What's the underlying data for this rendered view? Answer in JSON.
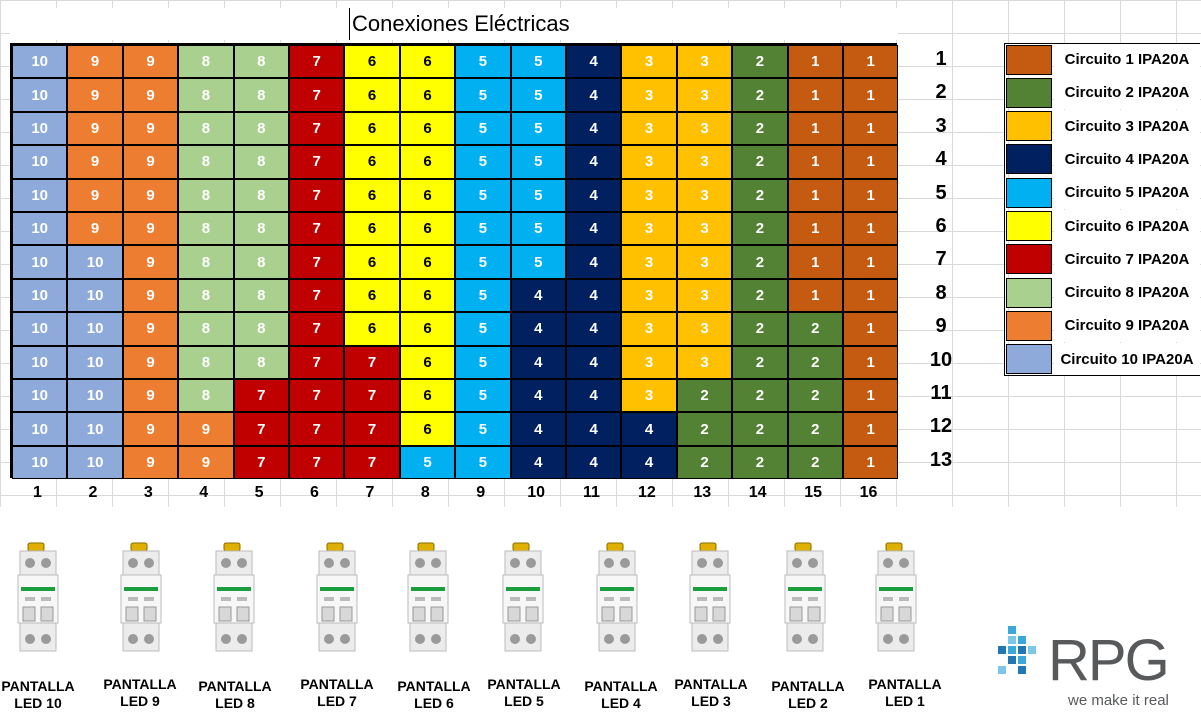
{
  "title": "Conexiones Eléctricas",
  "colors": {
    "1": "#c55a11",
    "2": "#548235",
    "3": "#ffc000",
    "4": "#002060",
    "5": "#00b0f0",
    "6": "#ffff00",
    "7": "#c00000",
    "8": "#a9d08e",
    "9": "#ed7d31",
    "10": "#8eaadb"
  },
  "text_colors": {
    "1": "#ffffff",
    "2": "#ffffff",
    "3": "#ffffff",
    "4": "#ffffff",
    "5": "#ffffff",
    "6": "#000000",
    "7": "#ffffff",
    "8": "#ffffff",
    "9": "#ffffff",
    "10": "#ffffff"
  },
  "grid_rows": [
    [
      10,
      9,
      9,
      8,
      8,
      7,
      6,
      6,
      5,
      5,
      4,
      3,
      3,
      2,
      1,
      1
    ],
    [
      10,
      9,
      9,
      8,
      8,
      7,
      6,
      6,
      5,
      5,
      4,
      3,
      3,
      2,
      1,
      1
    ],
    [
      10,
      9,
      9,
      8,
      8,
      7,
      6,
      6,
      5,
      5,
      4,
      3,
      3,
      2,
      1,
      1
    ],
    [
      10,
      9,
      9,
      8,
      8,
      7,
      6,
      6,
      5,
      5,
      4,
      3,
      3,
      2,
      1,
      1
    ],
    [
      10,
      9,
      9,
      8,
      8,
      7,
      6,
      6,
      5,
      5,
      4,
      3,
      3,
      2,
      1,
      1
    ],
    [
      10,
      9,
      9,
      8,
      8,
      7,
      6,
      6,
      5,
      5,
      4,
      3,
      3,
      2,
      1,
      1
    ],
    [
      10,
      10,
      9,
      8,
      8,
      7,
      6,
      6,
      5,
      5,
      4,
      3,
      3,
      2,
      1,
      1
    ],
    [
      10,
      10,
      9,
      8,
      8,
      7,
      6,
      6,
      5,
      4,
      4,
      3,
      3,
      2,
      1,
      1
    ],
    [
      10,
      10,
      9,
      8,
      8,
      7,
      6,
      6,
      5,
      4,
      4,
      3,
      3,
      2,
      2,
      1
    ],
    [
      10,
      10,
      9,
      8,
      8,
      7,
      7,
      6,
      5,
      4,
      4,
      3,
      3,
      2,
      2,
      1
    ],
    [
      10,
      10,
      9,
      8,
      7,
      7,
      7,
      6,
      5,
      4,
      4,
      3,
      2,
      2,
      2,
      1
    ],
    [
      10,
      10,
      9,
      9,
      7,
      7,
      7,
      6,
      5,
      4,
      4,
      4,
      2,
      2,
      2,
      1
    ],
    [
      10,
      10,
      9,
      9,
      7,
      7,
      7,
      5,
      5,
      4,
      4,
      4,
      2,
      2,
      2,
      1
    ]
  ],
  "column_labels": [
    "1",
    "2",
    "3",
    "4",
    "5",
    "6",
    "7",
    "8",
    "9",
    "10",
    "11",
    "12",
    "13",
    "14",
    "15",
    "16"
  ],
  "row_labels": [
    "1",
    "2",
    "3",
    "4",
    "5",
    "6",
    "7",
    "8",
    "9",
    "10",
    "11",
    "12",
    "13"
  ],
  "legend": [
    {
      "circuit": "1",
      "label": "Circuito 1 IPA20A"
    },
    {
      "circuit": "2",
      "label": "Circuito 2 IPA20A"
    },
    {
      "circuit": "3",
      "label": "Circuito 3 IPA20A"
    },
    {
      "circuit": "4",
      "label": "Circuito 4 IPA20A"
    },
    {
      "circuit": "5",
      "label": "Circuito 5 IPA20A"
    },
    {
      "circuit": "6",
      "label": "Circuito 6 IPA20A"
    },
    {
      "circuit": "7",
      "label": "Circuito 7 IPA20A"
    },
    {
      "circuit": "8",
      "label": "Circuito 8 IPA20A"
    },
    {
      "circuit": "9",
      "label": "Circuito 9 IPA20A"
    },
    {
      "circuit": "10",
      "label": "Circuito 10 IPA20A"
    }
  ],
  "breakers": [
    {
      "line1": "PANTALLA",
      "line2": "LED 10"
    },
    {
      "line1": "PANTALLA",
      "line2": "LED 9"
    },
    {
      "line1": "PANTALLA",
      "line2": "LED 8"
    },
    {
      "line1": "PANTALLA",
      "line2": "LED 7"
    },
    {
      "line1": "PANTALLA",
      "line2": "LED 6"
    },
    {
      "line1": "PANTALLA",
      "line2": "LED 5"
    },
    {
      "line1": "PANTALLA",
      "line2": "LED 4"
    },
    {
      "line1": "PANTALLA",
      "line2": "LED 3"
    },
    {
      "line1": "PANTALLA",
      "line2": "LED 2"
    },
    {
      "line1": "PANTALLA",
      "line2": "LED 1"
    }
  ],
  "logo": {
    "name": "RPG",
    "tagline": "we make it real",
    "color": "#58595b",
    "accent": "#3aa8d8"
  }
}
